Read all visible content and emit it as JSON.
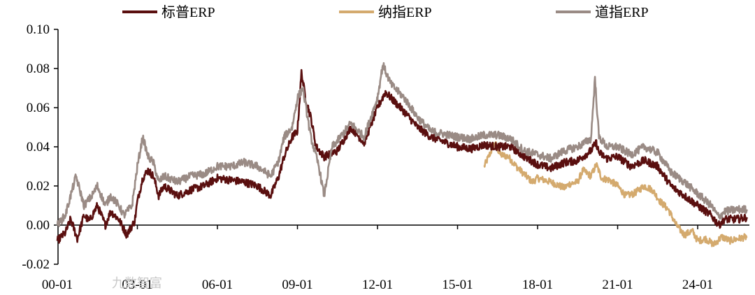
{
  "chart_data": {
    "type": "line",
    "title": "",
    "xlabel": "",
    "ylabel": "",
    "ylim": [
      -0.02,
      0.1
    ],
    "yticks": [
      "-0.02",
      "0.00",
      "0.02",
      "0.04",
      "0.06",
      "0.08",
      "0.10"
    ],
    "xticks": [
      "00-01",
      "03-01",
      "06-01",
      "09-01",
      "12-01",
      "15-01",
      "18-01",
      "21-01",
      "24-01"
    ],
    "legend_position": "top",
    "grid": false,
    "series": [
      {
        "name": "标普ERP",
        "color": "#5a0f0f",
        "points": [
          [
            2000.0,
            -0.008
          ],
          [
            2000.3,
            -0.004
          ],
          [
            2000.5,
            0.003
          ],
          [
            2000.75,
            -0.007
          ],
          [
            2001.0,
            0.005
          ],
          [
            2001.2,
            0.002
          ],
          [
            2001.5,
            0.01
          ],
          [
            2001.8,
            0.0
          ],
          [
            2002.0,
            0.007
          ],
          [
            2002.3,
            0.003
          ],
          [
            2002.6,
            -0.005
          ],
          [
            2002.9,
            0.002
          ],
          [
            2003.0,
            0.012
          ],
          [
            2003.2,
            0.024
          ],
          [
            2003.4,
            0.028
          ],
          [
            2003.6,
            0.025
          ],
          [
            2003.8,
            0.015
          ],
          [
            2004.0,
            0.02
          ],
          [
            2004.5,
            0.015
          ],
          [
            2005.0,
            0.018
          ],
          [
            2005.5,
            0.02
          ],
          [
            2006.0,
            0.024
          ],
          [
            2006.5,
            0.023
          ],
          [
            2007.0,
            0.022
          ],
          [
            2007.5,
            0.02
          ],
          [
            2008.0,
            0.015
          ],
          [
            2008.3,
            0.025
          ],
          [
            2008.5,
            0.035
          ],
          [
            2008.8,
            0.045
          ],
          [
            2009.0,
            0.048
          ],
          [
            2009.15,
            0.078
          ],
          [
            2009.3,
            0.065
          ],
          [
            2009.5,
            0.055
          ],
          [
            2009.7,
            0.04
          ],
          [
            2010.0,
            0.035
          ],
          [
            2010.5,
            0.038
          ],
          [
            2011.0,
            0.05
          ],
          [
            2011.5,
            0.042
          ],
          [
            2012.0,
            0.06
          ],
          [
            2012.3,
            0.068
          ],
          [
            2012.5,
            0.065
          ],
          [
            2013.0,
            0.058
          ],
          [
            2013.5,
            0.05
          ],
          [
            2014.0,
            0.045
          ],
          [
            2015.0,
            0.04
          ],
          [
            2015.5,
            0.039
          ],
          [
            2016.0,
            0.041
          ],
          [
            2016.5,
            0.04
          ],
          [
            2017.0,
            0.04
          ],
          [
            2017.5,
            0.035
          ],
          [
            2018.0,
            0.031
          ],
          [
            2018.5,
            0.029
          ],
          [
            2019.0,
            0.032
          ],
          [
            2019.5,
            0.033
          ],
          [
            2020.0,
            0.038
          ],
          [
            2020.2,
            0.042
          ],
          [
            2020.3,
            0.037
          ],
          [
            2020.6,
            0.034
          ],
          [
            2021.0,
            0.035
          ],
          [
            2021.5,
            0.03
          ],
          [
            2022.0,
            0.033
          ],
          [
            2022.5,
            0.03
          ],
          [
            2023.0,
            0.02
          ],
          [
            2023.5,
            0.015
          ],
          [
            2024.0,
            0.01
          ],
          [
            2024.5,
            0.005
          ],
          [
            2024.8,
            0.0
          ],
          [
            2025.0,
            0.003
          ],
          [
            2025.5,
            0.003
          ],
          [
            2025.85,
            0.004
          ]
        ]
      },
      {
        "name": "纳指ERP",
        "color": "#d4aa6e",
        "points": [
          [
            2016.0,
            0.03
          ],
          [
            2016.2,
            0.036
          ],
          [
            2016.4,
            0.042
          ],
          [
            2016.6,
            0.036
          ],
          [
            2016.9,
            0.035
          ],
          [
            2017.2,
            0.03
          ],
          [
            2017.5,
            0.026
          ],
          [
            2017.8,
            0.022
          ],
          [
            2018.0,
            0.024
          ],
          [
            2018.5,
            0.022
          ],
          [
            2019.0,
            0.019
          ],
          [
            2019.2,
            0.021
          ],
          [
            2019.5,
            0.022
          ],
          [
            2019.7,
            0.028
          ],
          [
            2020.0,
            0.025
          ],
          [
            2020.2,
            0.031
          ],
          [
            2020.4,
            0.024
          ],
          [
            2020.7,
            0.023
          ],
          [
            2021.0,
            0.02
          ],
          [
            2021.3,
            0.015
          ],
          [
            2021.6,
            0.016
          ],
          [
            2022.0,
            0.02
          ],
          [
            2022.3,
            0.018
          ],
          [
            2022.6,
            0.012
          ],
          [
            2022.9,
            0.008
          ],
          [
            2023.2,
            0.0
          ],
          [
            2023.5,
            -0.005
          ],
          [
            2023.8,
            -0.003
          ],
          [
            2024.0,
            -0.008
          ],
          [
            2024.3,
            -0.007
          ],
          [
            2024.6,
            -0.01
          ],
          [
            2024.9,
            -0.006
          ],
          [
            2025.2,
            -0.008
          ],
          [
            2025.5,
            -0.007
          ],
          [
            2025.85,
            -0.006
          ]
        ]
      },
      {
        "name": "道指ERP",
        "color": "#9a8b85",
        "points": [
          [
            2000.0,
            0.0
          ],
          [
            2000.3,
            0.005
          ],
          [
            2000.5,
            0.015
          ],
          [
            2000.7,
            0.025
          ],
          [
            2001.0,
            0.01
          ],
          [
            2001.3,
            0.015
          ],
          [
            2001.5,
            0.02
          ],
          [
            2001.8,
            0.01
          ],
          [
            2002.0,
            0.015
          ],
          [
            2002.3,
            0.01
          ],
          [
            2002.5,
            0.005
          ],
          [
            2002.8,
            0.01
          ],
          [
            2003.0,
            0.03
          ],
          [
            2003.2,
            0.045
          ],
          [
            2003.4,
            0.035
          ],
          [
            2003.6,
            0.032
          ],
          [
            2003.8,
            0.022
          ],
          [
            2004.0,
            0.025
          ],
          [
            2004.5,
            0.022
          ],
          [
            2005.0,
            0.025
          ],
          [
            2005.5,
            0.026
          ],
          [
            2006.0,
            0.03
          ],
          [
            2006.5,
            0.03
          ],
          [
            2007.0,
            0.032
          ],
          [
            2007.5,
            0.03
          ],
          [
            2008.0,
            0.025
          ],
          [
            2008.3,
            0.033
          ],
          [
            2008.5,
            0.045
          ],
          [
            2008.8,
            0.05
          ],
          [
            2009.0,
            0.065
          ],
          [
            2009.2,
            0.07
          ],
          [
            2009.5,
            0.045
          ],
          [
            2009.8,
            0.03
          ],
          [
            2010.0,
            0.015
          ],
          [
            2010.3,
            0.04
          ],
          [
            2010.5,
            0.043
          ],
          [
            2011.0,
            0.052
          ],
          [
            2011.5,
            0.045
          ],
          [
            2012.0,
            0.065
          ],
          [
            2012.2,
            0.082
          ],
          [
            2012.5,
            0.072
          ],
          [
            2013.0,
            0.065
          ],
          [
            2013.5,
            0.055
          ],
          [
            2014.0,
            0.048
          ],
          [
            2015.0,
            0.045
          ],
          [
            2015.5,
            0.044
          ],
          [
            2016.0,
            0.046
          ],
          [
            2016.5,
            0.046
          ],
          [
            2017.0,
            0.044
          ],
          [
            2017.5,
            0.038
          ],
          [
            2018.0,
            0.036
          ],
          [
            2018.5,
            0.034
          ],
          [
            2019.0,
            0.038
          ],
          [
            2019.5,
            0.04
          ],
          [
            2020.0,
            0.044
          ],
          [
            2020.15,
            0.075
          ],
          [
            2020.3,
            0.045
          ],
          [
            2020.6,
            0.04
          ],
          [
            2021.0,
            0.04
          ],
          [
            2021.5,
            0.036
          ],
          [
            2022.0,
            0.04
          ],
          [
            2022.5,
            0.037
          ],
          [
            2023.0,
            0.027
          ],
          [
            2023.5,
            0.022
          ],
          [
            2024.0,
            0.016
          ],
          [
            2024.5,
            0.01
          ],
          [
            2024.8,
            0.004
          ],
          [
            2025.0,
            0.007
          ],
          [
            2025.5,
            0.008
          ],
          [
            2025.85,
            0.008
          ]
        ]
      }
    ]
  },
  "watermark": "九数智富"
}
